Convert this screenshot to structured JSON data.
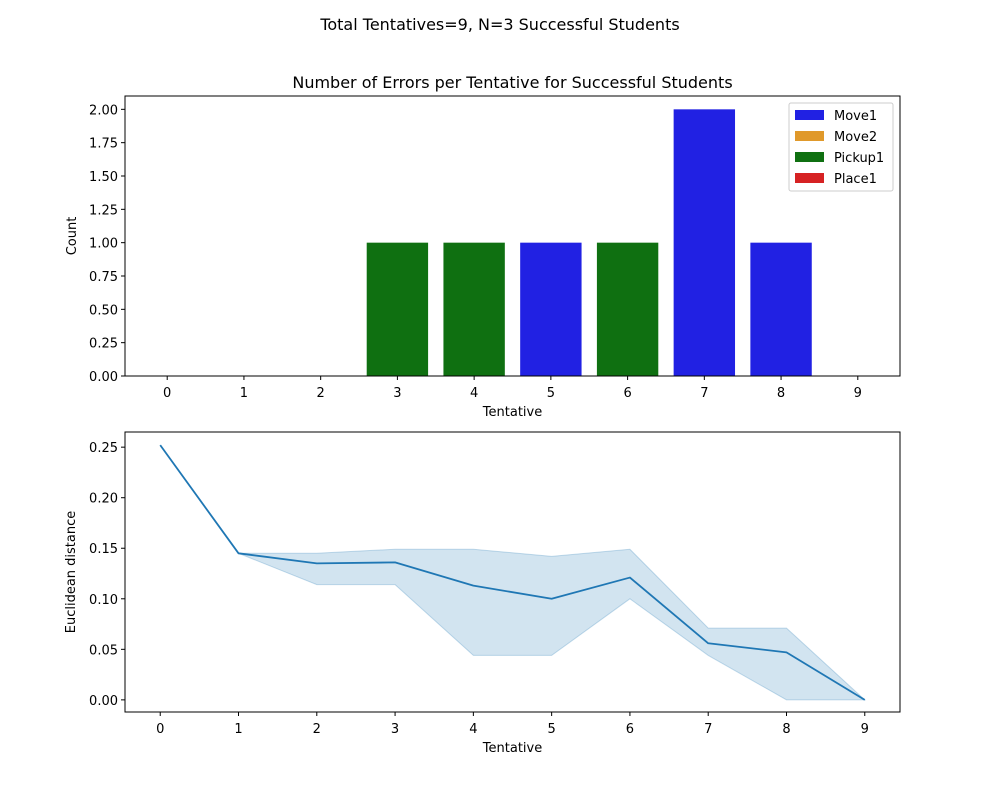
{
  "suptitle": "Total Tentatives=9, N=3 Successful Students",
  "chart_data": [
    {
      "type": "bar",
      "stacked": true,
      "title": "Number of Errors per Tentative for Successful Students",
      "xlabel": "Tentative",
      "ylabel": "Count",
      "categories": [
        "0",
        "1",
        "2",
        "3",
        "4",
        "5",
        "6",
        "7",
        "8",
        "9"
      ],
      "ylim": [
        0,
        2.1
      ],
      "yticks": [
        "0.00",
        "0.25",
        "0.50",
        "0.75",
        "1.00",
        "1.25",
        "1.50",
        "1.75",
        "2.00"
      ],
      "legend_position": "top-right",
      "grid": false,
      "series": [
        {
          "name": "Move1",
          "color": "#2121e3",
          "values": [
            0,
            0,
            0,
            0,
            0,
            1,
            0,
            2,
            1,
            0
          ]
        },
        {
          "name": "Move2",
          "color": "#e0992b",
          "values": [
            0,
            0,
            0,
            0,
            0,
            0,
            0,
            0,
            0,
            0
          ]
        },
        {
          "name": "Pickup1",
          "color": "#0f7011",
          "values": [
            0,
            0,
            0,
            1,
            1,
            0,
            1,
            0,
            0,
            0
          ]
        },
        {
          "name": "Place1",
          "color": "#d62223",
          "values": [
            0,
            0,
            0,
            0,
            0,
            0,
            0,
            0,
            0,
            0
          ]
        }
      ]
    },
    {
      "type": "line",
      "xlabel": "Tentative",
      "ylabel": "Euclidean distance",
      "x": [
        0,
        1,
        2,
        3,
        4,
        5,
        6,
        7,
        8,
        9
      ],
      "xticks": [
        "0",
        "1",
        "2",
        "3",
        "4",
        "5",
        "6",
        "7",
        "8",
        "9"
      ],
      "ylim": [
        -0.012,
        0.265
      ],
      "yticks": [
        "0.00",
        "0.05",
        "0.10",
        "0.15",
        "0.20",
        "0.25"
      ],
      "grid": false,
      "series": [
        {
          "line_color": "#1f77b4",
          "band_color": "#1f77b4",
          "values": [
            0.252,
            0.145,
            0.135,
            0.136,
            0.113,
            0.1,
            0.121,
            0.056,
            0.047,
            0.0
          ],
          "band_lower": [
            0.252,
            0.145,
            0.114,
            0.114,
            0.044,
            0.044,
            0.1,
            0.044,
            0.0,
            0.0
          ],
          "band_upper": [
            0.252,
            0.145,
            0.145,
            0.149,
            0.149,
            0.142,
            0.149,
            0.071,
            0.071,
            0.0
          ]
        }
      ]
    }
  ]
}
